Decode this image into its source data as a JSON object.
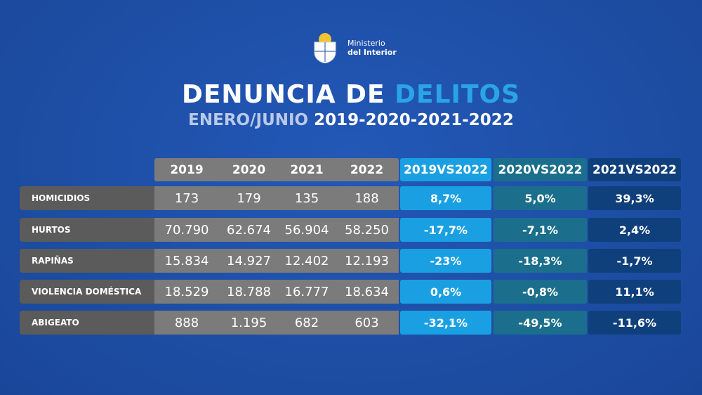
{
  "header": {
    "ministry_line1": "Ministerio",
    "ministry_line2": "del Interior"
  },
  "title": {
    "part1": "DENUNCIA DE",
    "part2": "DELITOS"
  },
  "subtitle": {
    "part1": "ENERO/JUNIO",
    "part2": "2019-2020-2021-2022"
  },
  "table": {
    "columns": [
      "2019",
      "2020",
      "2021",
      "2022",
      "2019VS2022",
      "2020VS2022",
      "2021VS2022"
    ],
    "rows": [
      [
        "HOMICIDIOS",
        "173",
        "179",
        "135",
        "188",
        "8,7%",
        "5,0%",
        "39,3%"
      ],
      [
        "HURTOS",
        "70.790",
        "62.674",
        "56.904",
        "58.250",
        "-17,7%",
        "-7,1%",
        "2,4%"
      ],
      [
        "RAPIÑAS",
        "15.834",
        "14.927",
        "12.402",
        "12.193",
        "-23%",
        "-18,3%",
        "-1,7%"
      ],
      [
        "VIOLENCIA DOMÉSTICA",
        "18.529",
        "18.788",
        "16.777",
        "18.634",
        "0,6%",
        "-0,8%",
        "11,1%"
      ],
      [
        "ABIGEATO",
        "888",
        "1.195",
        "682",
        "603",
        "-32,1%",
        "-49,5%",
        "-11,6%"
      ]
    ]
  }
}
